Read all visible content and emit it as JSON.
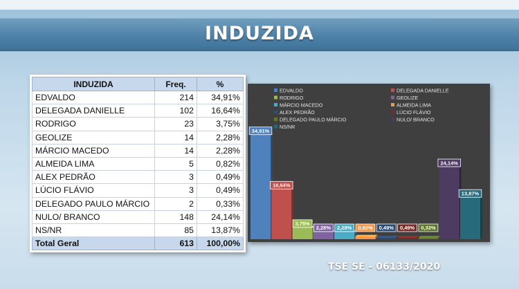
{
  "title": "INDUZIDA",
  "footer": "TSE SE - 06133/2020",
  "table": {
    "headers": [
      "INDUZIDA",
      "Freq.",
      "%"
    ],
    "rows": [
      {
        "name": "EDVALDO",
        "freq": "214",
        "pct": "34,91%"
      },
      {
        "name": "DELEGADA DANIELLE",
        "freq": "102",
        "pct": "16,64%"
      },
      {
        "name": "RODRIGO",
        "freq": "23",
        "pct": "3,75%"
      },
      {
        "name": "GEOLIZE",
        "freq": "14",
        "pct": "2,28%"
      },
      {
        "name": "MÁRCIO MACEDO",
        "freq": "14",
        "pct": "2,28%"
      },
      {
        "name": "ALMEIDA LIMA",
        "freq": "5",
        "pct": "0,82%"
      },
      {
        "name": "ALEX PEDRÃO",
        "freq": "3",
        "pct": "0,49%"
      },
      {
        "name": "LÚCIO FLÁVIO",
        "freq": "3",
        "pct": "0,49%"
      },
      {
        "name": "DELEGADO PAULO MÁRCIO",
        "freq": "2",
        "pct": "0,33%"
      },
      {
        "name": "NULO/ BRANCO",
        "freq": "148",
        "pct": "24,14%"
      },
      {
        "name": "NS/NR",
        "freq": "85",
        "pct": "13,87%"
      }
    ],
    "total": {
      "name": "Total Geral",
      "freq": "613",
      "pct": "100,00%"
    }
  },
  "chart_data": {
    "type": "bar",
    "categories": [
      "EDVALDO",
      "DELEGADA DANIELLE",
      "RODRIGO",
      "GEOLIZE",
      "MÁRCIO MACEDO",
      "ALMEIDA LIMA",
      "ALEX PEDRÃO",
      "LÚCIO FLÁVIO",
      "DELEGADO PAULO MÁRCIO",
      "NULO/ BRANCO",
      "NS/NR"
    ],
    "values": [
      34.91,
      16.64,
      3.75,
      2.28,
      2.28,
      0.82,
      0.49,
      0.49,
      0.33,
      24.14,
      13.87
    ],
    "labels": [
      "34,91%",
      "16,64%",
      "3,75%",
      "2,28%",
      "2,28%",
      "0,82%",
      "0,49%",
      "0,49%",
      "0,33%",
      "24,14%",
      "13,87%"
    ],
    "colors": [
      "#4f81bd",
      "#c0504d",
      "#9bbb59",
      "#8064a2",
      "#4bacc6",
      "#f79646",
      "#2c4d75",
      "#772c2a",
      "#5f7530",
      "#4d3b62",
      "#276a7c"
    ],
    "legend_position": "top",
    "grid": false,
    "ylim": [
      0,
      36
    ]
  }
}
